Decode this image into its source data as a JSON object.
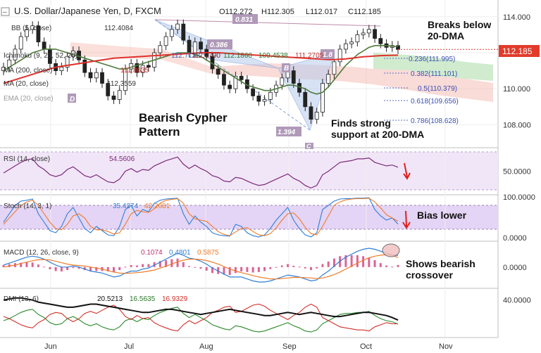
{
  "header": {
    "symbol_title": "U.S. Dollar/Japanese Yen, D, FXCM",
    "ohlc": [
      "O112.272",
      "H112.305",
      "L112.017",
      "C112.185"
    ]
  },
  "price_badge": "112.185",
  "colors": {
    "price": "#111111",
    "ma200": "#e0302a",
    "ma20": "#4d7a3a",
    "cloud_green": "#a9dba6",
    "cloud_red": "#f4b7b0",
    "pattern": "#7b9fd6",
    "rsi": "#7b2a7a",
    "stoch_k": "#2f7fd6",
    "stoch_d": "#ef7b2a",
    "macd": "#2f7fd6",
    "signal": "#ef7b2a",
    "hist": "#d03070",
    "badge": "#e23b2b"
  },
  "legend": {
    "main": [
      {
        "text": "BB (5, close)",
        "value": "112.4084"
      },
      {
        "text": "",
        "value": ""
      },
      {
        "text": "Ichimoku (9, 26, 52, 26)",
        "value": "112.7138"
      },
      {
        "text": "MA (200, close)",
        "value": "111.8635"
      },
      {
        "text": "MA (20, close)",
        "value": "112.3559"
      },
      {
        "text": "EMA (20, close)",
        "value": ""
      }
    ],
    "ichimoku_values": [
      "112.3790",
      "112.1860",
      "109.4538",
      "111.2705"
    ],
    "rsi": {
      "text": "RSI (14, close)",
      "value": "54.5606"
    },
    "stoch": {
      "text": "Stoch (14, 3, 1)",
      "values": [
        "35.4274",
        "42.2681"
      ]
    },
    "macd": {
      "text": "MACD (12, 26, close, 9)",
      "values": [
        "0.1074",
        "0.4801",
        "0.5875"
      ]
    },
    "dmi": {
      "text": "DMI (13, 6)",
      "values": [
        "20.5213",
        "16.5635",
        "16.9329"
      ]
    }
  },
  "fib_levels": [
    "0.236(111.995)",
    "0.382(111.101)",
    "0.5(110.379)",
    "0.618(109.656)",
    "0.786(108.628)"
  ],
  "pattern_labels": [
    "0.831",
    "0.386",
    "B",
    "1.394",
    "1.8",
    "C",
    "D"
  ],
  "annotations": {
    "breaks": "Breaks below\n20-DMA",
    "cypher": "Bearish Cypher\nPattern",
    "support": "Finds strong\nsupport at 200-DMA",
    "bias": "Bias lower",
    "crossover": "Shows bearish\ncrossover"
  },
  "chart_data": [
    {
      "type": "line",
      "panel": "price",
      "x_ticks": [
        "Jun",
        "Jul",
        "Aug",
        "Sep",
        "Oct",
        "Nov"
      ],
      "y_ticks": [
        "114.000",
        "112.000",
        "110.000",
        "108.000"
      ],
      "ylim": [
        106.8,
        114.7
      ],
      "series": [
        {
          "name": "",
          "values": [
            111.2,
            111.6,
            112.2,
            112.9,
            113.3,
            113.5,
            112.6,
            112.2,
            111.4,
            111.0,
            111.2,
            111.8,
            112.1,
            111.6,
            110.9,
            110.6,
            110.9,
            110.3,
            109.6,
            109.4,
            109.9,
            111.1,
            111.4,
            110.9,
            111.3,
            111.2,
            112.0,
            112.4,
            112.9,
            113.3,
            113.6,
            112.7,
            112.0,
            112.6,
            112.2,
            111.8,
            111.1,
            110.8,
            110.2,
            110.0,
            110.7,
            110.5,
            110.0,
            109.6,
            109.3,
            109.4,
            109.8,
            110.2,
            110.6,
            111.0,
            110.3,
            109.8,
            109.0,
            108.3,
            108.7,
            110.3,
            110.8,
            111.5,
            112.2,
            112.5,
            112.6,
            113.0,
            113.1,
            113.3,
            112.8,
            112.5,
            112.3,
            112.4,
            112.185
          ]
        },
        {
          "name": "",
          "values": [
            111.0,
            111.2,
            111.4,
            111.6,
            111.8,
            112.0,
            112.1,
            112.2,
            112.2,
            112.2,
            112.1,
            112.0,
            111.9,
            111.8,
            111.7,
            111.6,
            111.5,
            111.4,
            111.3,
            111.2,
            111.1,
            111.1,
            111.2,
            111.3,
            111.4,
            111.5,
            111.6,
            111.7,
            111.8,
            111.9,
            112.0,
            112.0,
            112.0,
            111.9,
            111.8,
            111.6,
            111.4,
            111.2,
            111.0,
            110.8,
            110.6,
            110.4,
            110.2,
            110.1,
            110.0,
            109.9,
            109.9,
            110.0,
            110.1,
            110.2,
            110.2,
            110.1,
            110.0,
            109.8,
            109.7,
            109.8,
            110.1,
            110.5,
            110.9,
            111.3,
            111.6,
            111.9,
            112.1,
            112.3,
            112.4,
            112.4,
            112.4,
            112.36,
            112.3559
          ]
        },
        {
          "name": "",
          "values": [
            110.3,
            110.4,
            110.5,
            110.6,
            110.7,
            110.8,
            110.9,
            111.0,
            111.1,
            111.2,
            111.25,
            111.3,
            111.35,
            111.4,
            111.45,
            111.5,
            111.55,
            111.6,
            111.65,
            111.7,
            111.72,
            111.74,
            111.76,
            111.78,
            111.8,
            111.82,
            111.84,
            111.86,
            111.88,
            111.9,
            111.92,
            111.94,
            111.96,
            111.98,
            112.0,
            112.0,
            112.0,
            112.0,
            111.98,
            111.96,
            111.94,
            111.92,
            111.9,
            111.88,
            111.86,
            111.84,
            111.82,
            111.8,
            111.78,
            111.76,
            111.74,
            111.72,
            111.7,
            111.68,
            111.66,
            111.64,
            111.62,
            111.62,
            111.64,
            111.66,
            111.7,
            111.74,
            111.78,
            111.8,
            111.82,
            111.84,
            111.85,
            111.86,
            111.8635
          ]
        }
      ]
    },
    {
      "type": "line",
      "panel": "rsi",
      "y_ticks": [
        "50.0000"
      ],
      "ylim": [
        25,
        75
      ],
      "series": [
        {
          "name": "",
          "values": [
            48,
            52,
            56,
            60,
            63,
            64,
            56,
            52,
            46,
            44,
            46,
            52,
            55,
            50,
            45,
            43,
            46,
            42,
            38,
            37,
            41,
            50,
            53,
            49,
            52,
            51,
            56,
            59,
            62,
            64,
            66,
            58,
            53,
            57,
            53,
            50,
            45,
            43,
            39,
            38,
            43,
            42,
            39,
            36,
            34,
            35,
            38,
            41,
            44,
            47,
            42,
            39,
            34,
            31,
            34,
            46,
            50,
            55,
            60,
            61,
            62,
            64,
            64,
            65,
            60,
            58,
            56,
            57,
            54.56
          ]
        }
      ]
    },
    {
      "type": "line",
      "panel": "stoch",
      "y_ticks": [
        "100.0000",
        "0.0000"
      ],
      "ylim": [
        0,
        100
      ],
      "series": [
        {
          "name": "",
          "values": [
            40,
            60,
            80,
            90,
            92,
            95,
            60,
            40,
            20,
            15,
            30,
            60,
            75,
            50,
            25,
            15,
            30,
            20,
            10,
            8,
            30,
            70,
            80,
            55,
            70,
            65,
            85,
            92,
            95,
            96,
            97,
            60,
            35,
            55,
            40,
            30,
            15,
            10,
            8,
            7,
            35,
            30,
            15,
            8,
            5,
            10,
            25,
            45,
            60,
            75,
            45,
            25,
            10,
            5,
            15,
            70,
            80,
            90,
            95,
            96,
            96,
            97,
            97,
            98,
            70,
            55,
            45,
            50,
            35.43
          ]
        },
        {
          "name": "",
          "values": [
            35,
            50,
            65,
            80,
            88,
            92,
            80,
            60,
            40,
            25,
            22,
            35,
            55,
            60,
            50,
            30,
            22,
            22,
            18,
            12,
            15,
            35,
            60,
            68,
            65,
            63,
            72,
            85,
            92,
            94,
            96,
            85,
            60,
            48,
            45,
            42,
            30,
            18,
            11,
            8,
            17,
            25,
            27,
            18,
            10,
            8,
            13,
            27,
            45,
            60,
            62,
            48,
            28,
            13,
            10,
            30,
            55,
            80,
            88,
            93,
            95,
            96,
            96,
            97,
            88,
            74,
            58,
            50,
            42.27
          ]
        }
      ]
    },
    {
      "type": "line",
      "panel": "macd",
      "y_ticks": [
        "0.0000"
      ],
      "ylim": [
        -1.0,
        1.2
      ],
      "series": [
        {
          "name": "",
          "values": [
            0.1,
            0.2,
            0.3,
            0.4,
            0.5,
            0.55,
            0.5,
            0.4,
            0.25,
            0.1,
            0.0,
            0.0,
            0.05,
            0.0,
            -0.1,
            -0.2,
            -0.25,
            -0.3,
            -0.4,
            -0.5,
            -0.45,
            -0.3,
            -0.2,
            -0.2,
            -0.1,
            -0.05,
            0.1,
            0.25,
            0.4,
            0.55,
            0.7,
            0.6,
            0.45,
            0.4,
            0.3,
            0.15,
            -0.05,
            -0.2,
            -0.35,
            -0.5,
            -0.5,
            -0.5,
            -0.6,
            -0.7,
            -0.75,
            -0.75,
            -0.7,
            -0.6,
            -0.5,
            -0.4,
            -0.45,
            -0.5,
            -0.6,
            -0.7,
            -0.65,
            -0.4,
            -0.2,
            0.05,
            0.3,
            0.5,
            0.65,
            0.8,
            0.9,
            0.95,
            0.9,
            0.8,
            0.7,
            0.62,
            0.5875
          ]
        },
        {
          "name": "",
          "values": [
            0.0,
            0.05,
            0.1,
            0.18,
            0.25,
            0.32,
            0.37,
            0.38,
            0.36,
            0.3,
            0.22,
            0.15,
            0.1,
            0.08,
            0.05,
            0.0,
            -0.05,
            -0.1,
            -0.18,
            -0.25,
            -0.3,
            -0.32,
            -0.3,
            -0.28,
            -0.25,
            -0.2,
            -0.15,
            -0.05,
            0.05,
            0.15,
            0.27,
            0.35,
            0.4,
            0.4,
            0.38,
            0.33,
            0.25,
            0.15,
            0.03,
            -0.1,
            -0.2,
            -0.28,
            -0.35,
            -0.43,
            -0.5,
            -0.55,
            -0.6,
            -0.6,
            -0.58,
            -0.55,
            -0.52,
            -0.52,
            -0.53,
            -0.55,
            -0.58,
            -0.55,
            -0.48,
            -0.38,
            -0.25,
            -0.1,
            0.05,
            0.2,
            0.35,
            0.47,
            0.55,
            0.6,
            0.62,
            0.6,
            0.4801
          ]
        }
      ]
    },
    {
      "type": "line",
      "panel": "dmi",
      "y_ticks": [
        "40.0000"
      ],
      "ylim": [
        5,
        50
      ],
      "series": [
        {
          "name": "",
          "values": [
            40,
            41,
            42,
            42,
            41,
            40,
            38,
            37,
            36,
            35,
            34,
            33,
            33,
            34,
            35,
            36,
            36,
            35,
            34,
            33,
            32,
            31,
            30,
            29,
            28,
            28,
            29,
            30,
            31,
            31,
            30,
            29,
            28,
            27,
            26,
            27,
            28,
            29,
            30,
            31,
            30,
            29,
            28,
            27,
            26,
            25,
            25,
            26,
            27,
            28,
            27,
            26,
            27,
            28,
            27,
            26,
            25,
            24,
            24,
            25,
            26,
            27,
            28,
            28,
            27,
            26,
            25,
            23,
            20.52
          ]
        },
        {
          "name": "",
          "values": [
            20,
            22,
            25,
            28,
            30,
            31,
            26,
            23,
            18,
            16,
            17,
            22,
            24,
            21,
            17,
            15,
            17,
            14,
            12,
            11,
            14,
            20,
            22,
            19,
            22,
            21,
            25,
            28,
            30,
            32,
            33,
            27,
            23,
            26,
            23,
            20,
            16,
            14,
            12,
            11,
            15,
            14,
            12,
            10,
            9,
            10,
            12,
            14,
            16,
            18,
            15,
            13,
            10,
            9,
            11,
            17,
            20,
            23,
            26,
            27,
            27,
            28,
            28,
            29,
            25,
            22,
            20,
            19,
            16.56
          ]
        },
        {
          "name": "",
          "values": [
            24,
            22,
            19,
            16,
            14,
            13,
            18,
            21,
            26,
            28,
            27,
            22,
            19,
            22,
            27,
            29,
            27,
            30,
            33,
            35,
            31,
            24,
            21,
            25,
            22,
            23,
            18,
            15,
            13,
            11,
            10,
            16,
            20,
            17,
            20,
            23,
            28,
            30,
            33,
            34,
            28,
            29,
            32,
            35,
            36,
            34,
            30,
            27,
            24,
            21,
            25,
            28,
            33,
            36,
            33,
            23,
            20,
            17,
            14,
            13,
            12,
            11,
            11,
            10,
            14,
            16,
            18,
            17,
            16.93
          ]
        }
      ]
    }
  ]
}
